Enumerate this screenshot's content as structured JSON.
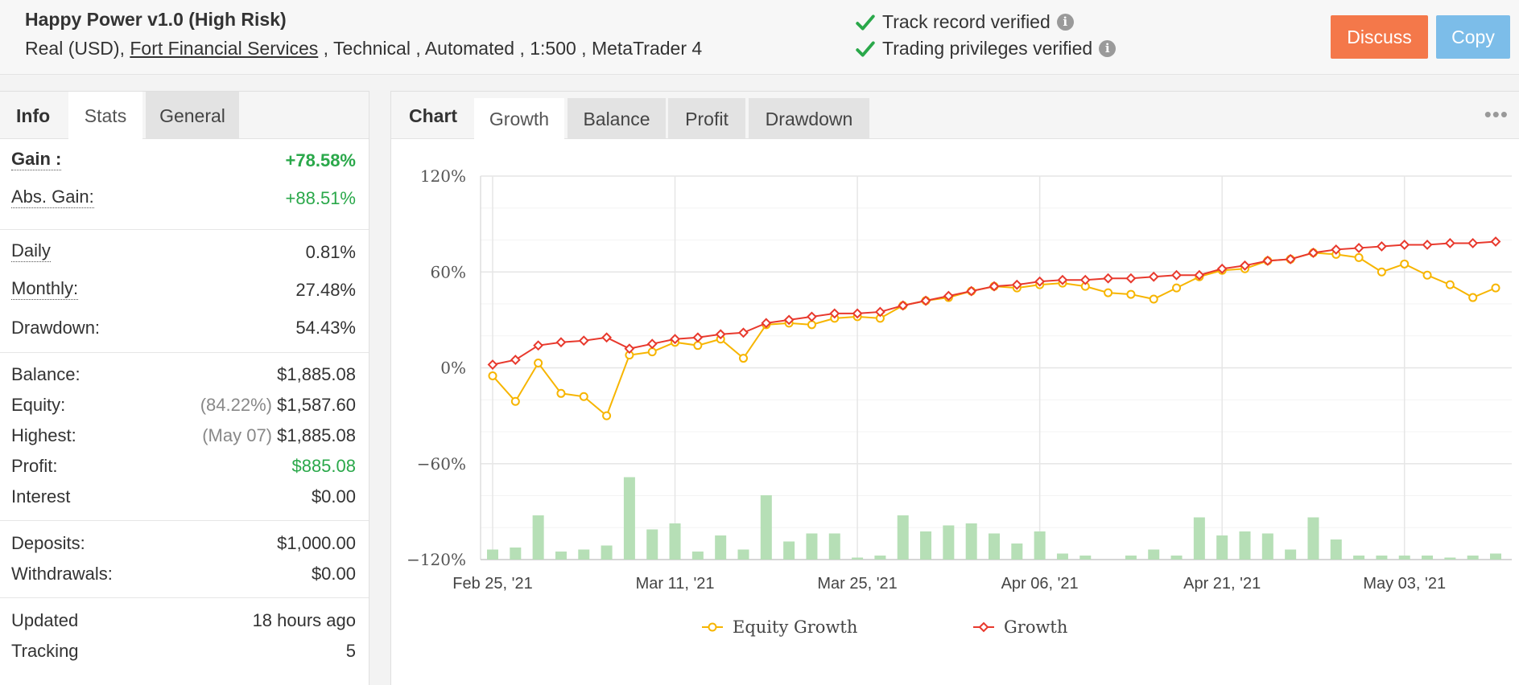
{
  "header": {
    "title": "Happy Power v1.0 (High Risk)",
    "meta_prefix": "Real (USD),",
    "broker": "Fort Financial Services",
    "meta_suffix": ", Technical , Automated , 1:500 , MetaTrader 4",
    "verify_track": "Track record verified",
    "verify_trading": "Trading privileges verified",
    "info_glyph": "i",
    "discuss_label": "Discuss",
    "copy_label": "Copy",
    "colors": {
      "discuss": "#f4784a",
      "copy": "#7cbde9",
      "check": "#2aa84a"
    }
  },
  "left_tabs": {
    "info": "Info",
    "stats": "Stats",
    "general": "General"
  },
  "stats": {
    "gain": {
      "label": "Gain :",
      "value": "+78.58%"
    },
    "abs_gain": {
      "label": "Abs. Gain:",
      "value": "+88.51%"
    },
    "daily": {
      "label": "Daily",
      "value": "0.81%"
    },
    "monthly": {
      "label": "Monthly:",
      "value": "27.48%"
    },
    "drawdown": {
      "label": "Drawdown:",
      "value": "54.43%"
    },
    "balance": {
      "label": "Balance:",
      "value": "$1,885.08"
    },
    "equity": {
      "label": "Equity:",
      "sub": "(84.22%)",
      "value": "$1,587.60"
    },
    "highest": {
      "label": "Highest:",
      "sub": "(May 07)",
      "value": "$1,885.08"
    },
    "profit": {
      "label": "Profit:",
      "value": "$885.08"
    },
    "interest": {
      "label": "Interest",
      "value": "$0.00"
    },
    "deposits": {
      "label": "Deposits:",
      "value": "$1,000.00"
    },
    "withdrawals": {
      "label": "Withdrawals:",
      "value": "$0.00"
    },
    "updated": {
      "label": "Updated",
      "value": "18 hours ago"
    },
    "tracking": {
      "label": "Tracking",
      "value": "5"
    }
  },
  "chart_tabs": {
    "chart": "Chart",
    "growth": "Growth",
    "balance": "Balance",
    "profit": "Profit",
    "drawdown": "Drawdown",
    "menu_glyph": "•••"
  },
  "chart_data": {
    "type": "line",
    "ylim": [
      -120,
      120
    ],
    "y_ticks": [
      120,
      60,
      0,
      -60,
      -120
    ],
    "y_tick_labels": [
      "120%",
      "60%",
      "0%",
      "−60%",
      "−120%"
    ],
    "x_tick_labels": [
      "Feb 25, '21",
      "Mar 11, '21",
      "Mar 25, '21",
      "Apr 06, '21",
      "Apr 21, '21",
      "May 03, '21"
    ],
    "x_tick_index": [
      0,
      8,
      16,
      24,
      32,
      40
    ],
    "grid": true,
    "legend_position": "bottom",
    "series": [
      {
        "name": "Equity Growth",
        "color": "#f7b500",
        "values": [
          -5,
          -21,
          3,
          -16,
          -18,
          -30,
          8,
          10,
          16,
          14,
          18,
          6,
          27,
          28,
          27,
          31,
          32,
          31,
          39,
          42,
          44,
          48,
          51,
          50,
          52,
          53,
          51,
          47,
          46,
          43,
          50,
          57,
          61,
          62,
          67,
          68,
          72,
          71,
          69,
          60,
          65,
          58,
          52,
          44,
          50
        ]
      },
      {
        "name": "Growth",
        "color": "#e8392d",
        "values": [
          2,
          5,
          14,
          16,
          17,
          19,
          12,
          15,
          18,
          19,
          21,
          22,
          28,
          30,
          32,
          34,
          34,
          35,
          39,
          42,
          45,
          48,
          51,
          52,
          54,
          55,
          55,
          56,
          56,
          57,
          58,
          58,
          62,
          64,
          67,
          68,
          72,
          74,
          75,
          76,
          77,
          77,
          78,
          78,
          79
        ]
      }
    ],
    "bar_values": [
      5,
      6,
      22,
      4,
      5,
      7,
      41,
      15,
      18,
      4,
      12,
      5,
      32,
      9,
      13,
      13,
      1,
      2,
      22,
      14,
      17,
      18,
      13,
      8,
      14,
      3,
      2,
      0,
      2,
      5,
      2,
      21,
      12,
      14,
      13,
      5,
      21,
      10,
      2,
      2,
      2,
      2,
      1,
      2,
      3
    ],
    "bar_color": "#b6dfb6"
  }
}
